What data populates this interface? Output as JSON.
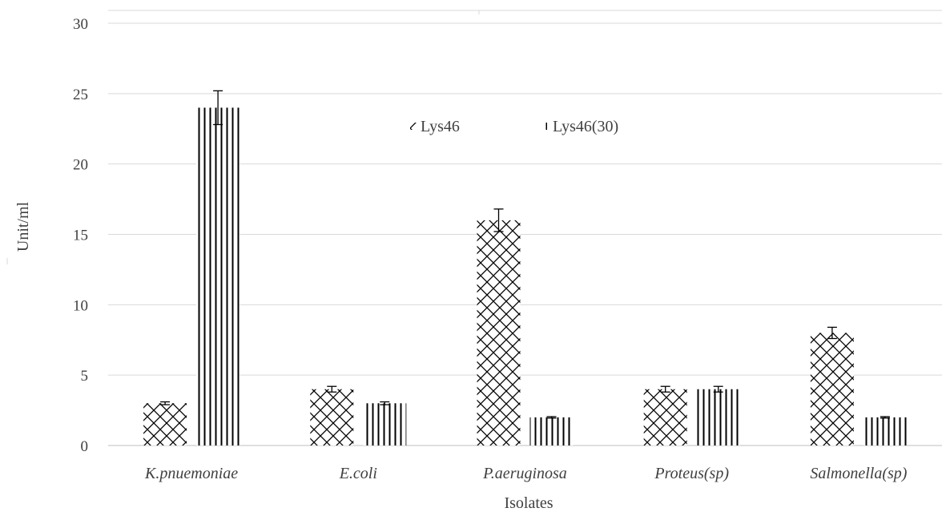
{
  "chart_data": {
    "type": "bar",
    "title": "",
    "xlabel": "Isolates",
    "ylabel": "Unit/ml",
    "ylim": [
      0,
      30
    ],
    "yticks": [
      0,
      5,
      10,
      15,
      20,
      25,
      30
    ],
    "grid": true,
    "legend_position": "top-center",
    "categories": [
      "K.pnuemoniae",
      "E.coli",
      "P.aeruginosa",
      "Proteus(sp)",
      "Salmonella(sp)"
    ],
    "series": [
      {
        "name": "Lys46",
        "pattern": "crosshatch",
        "values": [
          3,
          4,
          16,
          4,
          8
        ],
        "errors": [
          0.1,
          0.2,
          0.8,
          0.2,
          0.4
        ]
      },
      {
        "name": "Lys46(30)",
        "pattern": "vertical-lines",
        "values": [
          24,
          3,
          2,
          4,
          2
        ],
        "errors": [
          1.2,
          0.1,
          0.05,
          0.2,
          0.05
        ]
      }
    ],
    "colors": {
      "bar_fill": "#ffffff",
      "pattern": "#000000",
      "grid": "#d9d9d9",
      "text": "#404040"
    }
  }
}
